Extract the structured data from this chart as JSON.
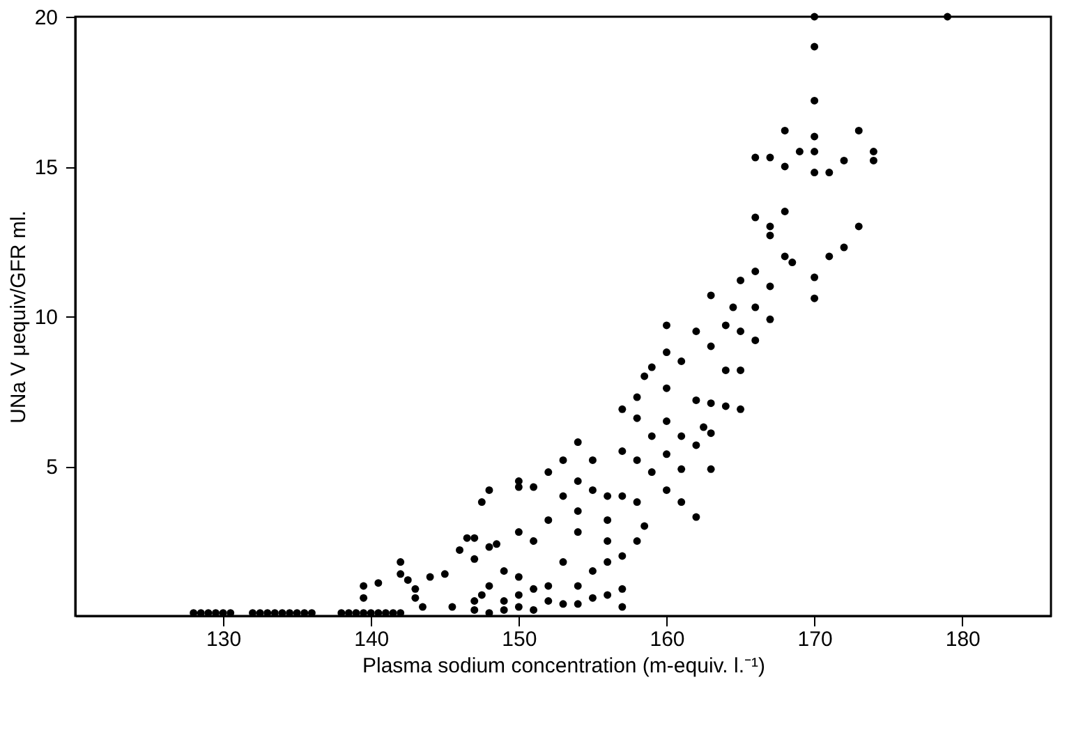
{
  "chart_data": {
    "type": "scatter",
    "xlabel": "Plasma sodium concentration (m-equiv. l.⁻¹)",
    "ylabel": "UNa V μequiv/GFR ml.",
    "xlim": [
      120,
      186
    ],
    "xticks": [
      130,
      140,
      150,
      160,
      170,
      180
    ],
    "ylim": [
      0,
      20
    ],
    "yticks": [
      5,
      10,
      15,
      20
    ],
    "grid": false,
    "marker": "circle",
    "series": [
      {
        "color": "#000000",
        "x": [
          128,
          128.5,
          129,
          129.5,
          130,
          130.5,
          132,
          132.5,
          133,
          133.5,
          134,
          134.5,
          135,
          135.5,
          136,
          138,
          138.5,
          139,
          139.5,
          140,
          140.5,
          141,
          141.5,
          142,
          139.5,
          139.5,
          140.5,
          142,
          142,
          142.5,
          143,
          143,
          143.5,
          144,
          145,
          145.5,
          146,
          146.5,
          147,
          147,
          147,
          147,
          147.5,
          147.5,
          148,
          148,
          148,
          148,
          148.5,
          149,
          149,
          149,
          150,
          150,
          150,
          150,
          150,
          150,
          151,
          151,
          151,
          151,
          152,
          152,
          152,
          152,
          153,
          153,
          153,
          153,
          154,
          154,
          154,
          154,
          154,
          154,
          155,
          155,
          155,
          155,
          156,
          156,
          156,
          156,
          156,
          157,
          157,
          157,
          157,
          157,
          157,
          158,
          158,
          158,
          158,
          158,
          158.5,
          158.5,
          159,
          159,
          159,
          160,
          160,
          160,
          160,
          160,
          160,
          161,
          161,
          161,
          161,
          162,
          162,
          162,
          162,
          162.5,
          163,
          163,
          163,
          163,
          163,
          164,
          164,
          164,
          164.5,
          165,
          165,
          165,
          165,
          166,
          166,
          166,
          166,
          166,
          167,
          167,
          167,
          167,
          167,
          168,
          168,
          168,
          168,
          168.5,
          169,
          170,
          170,
          170,
          170,
          170,
          170,
          170,
          170,
          171,
          171,
          172,
          172,
          173,
          173,
          174,
          174,
          179
        ],
        "values": [
          0.1,
          0.1,
          0.1,
          0.1,
          0.1,
          0.1,
          0.1,
          0.1,
          0.1,
          0.1,
          0.1,
          0.1,
          0.1,
          0.1,
          0.1,
          0.1,
          0.1,
          0.1,
          0.1,
          0.1,
          0.1,
          0.1,
          0.1,
          0.1,
          1.0,
          0.6,
          1.1,
          1.8,
          1.4,
          1.2,
          0.9,
          0.6,
          0.3,
          1.3,
          1.4,
          0.3,
          2.2,
          2.6,
          2.6,
          1.9,
          0.5,
          0.2,
          3.8,
          0.7,
          4.2,
          2.3,
          1.0,
          0.1,
          2.4,
          1.5,
          0.5,
          0.2,
          4.5,
          4.3,
          2.8,
          1.3,
          0.7,
          0.3,
          4.3,
          2.5,
          0.9,
          0.2,
          4.8,
          3.2,
          1.0,
          0.5,
          5.2,
          4.0,
          1.8,
          0.4,
          5.8,
          4.5,
          3.5,
          2.8,
          1.0,
          0.4,
          5.2,
          4.2,
          1.5,
          0.6,
          4.0,
          3.2,
          2.5,
          1.8,
          0.7,
          6.9,
          5.5,
          4.0,
          2.0,
          0.9,
          0.3,
          6.6,
          5.2,
          3.8,
          2.5,
          7.3,
          8.0,
          3.0,
          4.8,
          6.0,
          8.3,
          9.7,
          8.8,
          7.6,
          6.5,
          5.4,
          4.2,
          8.5,
          6.0,
          4.9,
          3.8,
          9.5,
          7.2,
          5.7,
          3.3,
          6.3,
          10.7,
          9.0,
          7.1,
          6.1,
          4.9,
          9.7,
          8.2,
          7.0,
          10.3,
          11.2,
          9.5,
          8.2,
          6.9,
          15.3,
          13.3,
          11.5,
          10.3,
          9.2,
          15.3,
          12.7,
          11.0,
          9.9,
          13.0,
          16.2,
          15.0,
          13.5,
          12.0,
          11.8,
          15.5,
          20,
          19,
          17.2,
          16.0,
          15.5,
          14.8,
          11.3,
          10.6,
          14.8,
          12.0,
          12.3,
          15.2,
          13.0,
          16.2,
          15.5,
          15.2,
          20
        ]
      }
    ]
  }
}
